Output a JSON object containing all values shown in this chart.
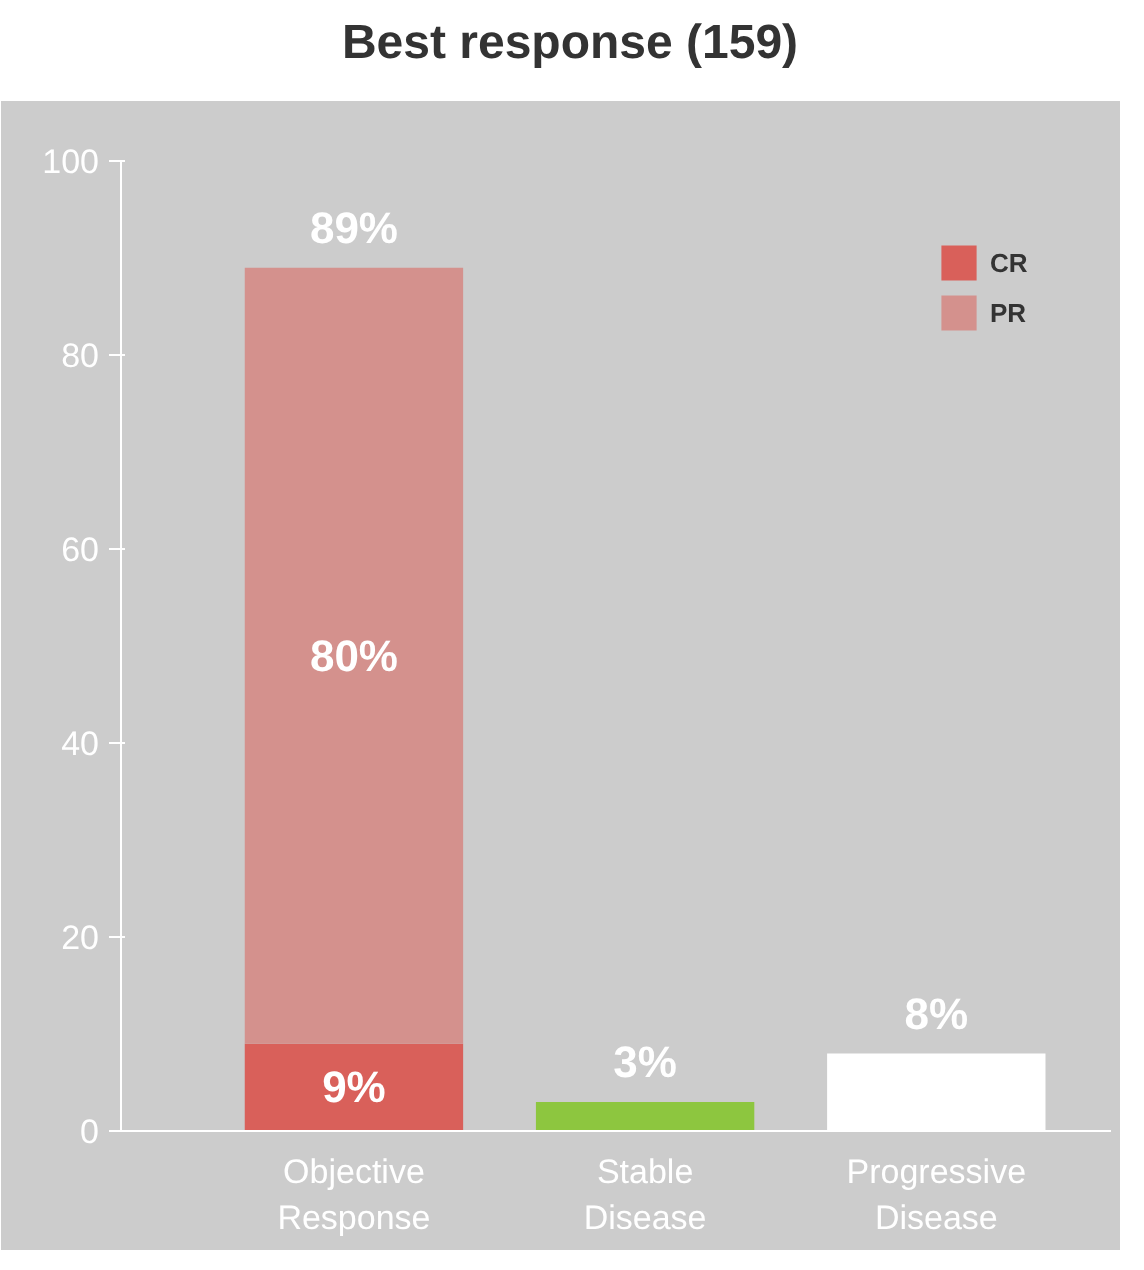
{
  "chart_data": {
    "type": "bar",
    "title": "Best response (159)",
    "categories": [
      "Objective Response",
      "Stable Disease",
      "Progressive Disease"
    ],
    "stacked": true,
    "series": [
      {
        "name": "CR",
        "color": "#d9605a",
        "values": [
          9,
          null,
          null
        ],
        "value_labels": [
          "9%",
          null,
          null
        ]
      },
      {
        "name": "PR",
        "color": "#d4918d",
        "values": [
          80,
          null,
          null
        ],
        "value_labels": [
          "80%",
          null,
          null
        ]
      },
      {
        "colors": [
          null,
          "#8dc63f",
          "#ffffff"
        ],
        "values": [
          null,
          3,
          8
        ],
        "value_labels": [
          null,
          "3%",
          "8%"
        ]
      }
    ],
    "totals": [
      "89%",
      null,
      null
    ],
    "ylim": [
      0,
      100
    ],
    "yticks": [
      0,
      20,
      40,
      60,
      80,
      100
    ],
    "grid": false,
    "legend": "top right"
  }
}
